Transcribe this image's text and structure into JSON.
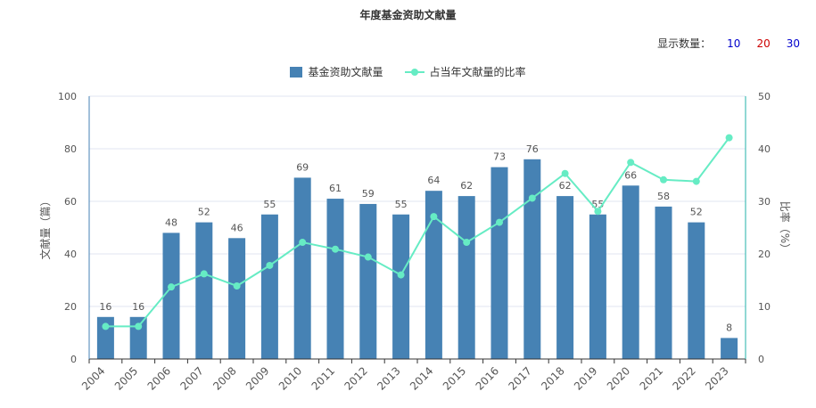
{
  "title": "年度基金资助文献量",
  "display_count": {
    "label": "显示数量：",
    "options": [
      {
        "label": "10",
        "color": "#0000cc"
      },
      {
        "label": "20",
        "color": "#cc0000"
      },
      {
        "label": "30",
        "color": "#0000cc"
      }
    ]
  },
  "colors": {
    "bar": "#4682b4",
    "line": "#66ecc4",
    "left_axis": "#4682b4",
    "right_axis": "#20b2aa",
    "grid": "#e0e6f1",
    "text": "#555555"
  },
  "chart_data": {
    "type": "bar",
    "title": "年度基金资助文献量",
    "categories": [
      "2004",
      "2005",
      "2006",
      "2007",
      "2008",
      "2009",
      "2010",
      "2011",
      "2012",
      "2013",
      "2014",
      "2015",
      "2016",
      "2017",
      "2018",
      "2019",
      "2020",
      "2021",
      "2022",
      "2023"
    ],
    "series": [
      {
        "name": "基金资助文献量",
        "type": "bar",
        "axis": "left",
        "values": [
          16,
          16,
          48,
          52,
          46,
          55,
          69,
          61,
          59,
          55,
          64,
          62,
          73,
          76,
          62,
          55,
          66,
          58,
          52,
          8
        ],
        "show_labels": true
      },
      {
        "name": "占当年文献量的比率",
        "type": "line",
        "axis": "right",
        "values": [
          6.2,
          6.2,
          13.7,
          16.2,
          13.9,
          17.8,
          22.2,
          20.9,
          19.4,
          16.0,
          27.1,
          22.2,
          26.0,
          30.6,
          35.3,
          28.1,
          37.4,
          34.1,
          33.8,
          42.1
        ]
      }
    ],
    "ylabel": "文献量（篇）",
    "y2label": "比率（%）",
    "ylim": [
      0,
      100
    ],
    "y2lim": [
      0,
      50
    ],
    "yticks": [
      0,
      20,
      40,
      60,
      80,
      100
    ],
    "y2ticks": [
      0,
      10,
      20,
      30,
      40,
      50
    ],
    "grid": true,
    "legend_position": "top-center"
  }
}
